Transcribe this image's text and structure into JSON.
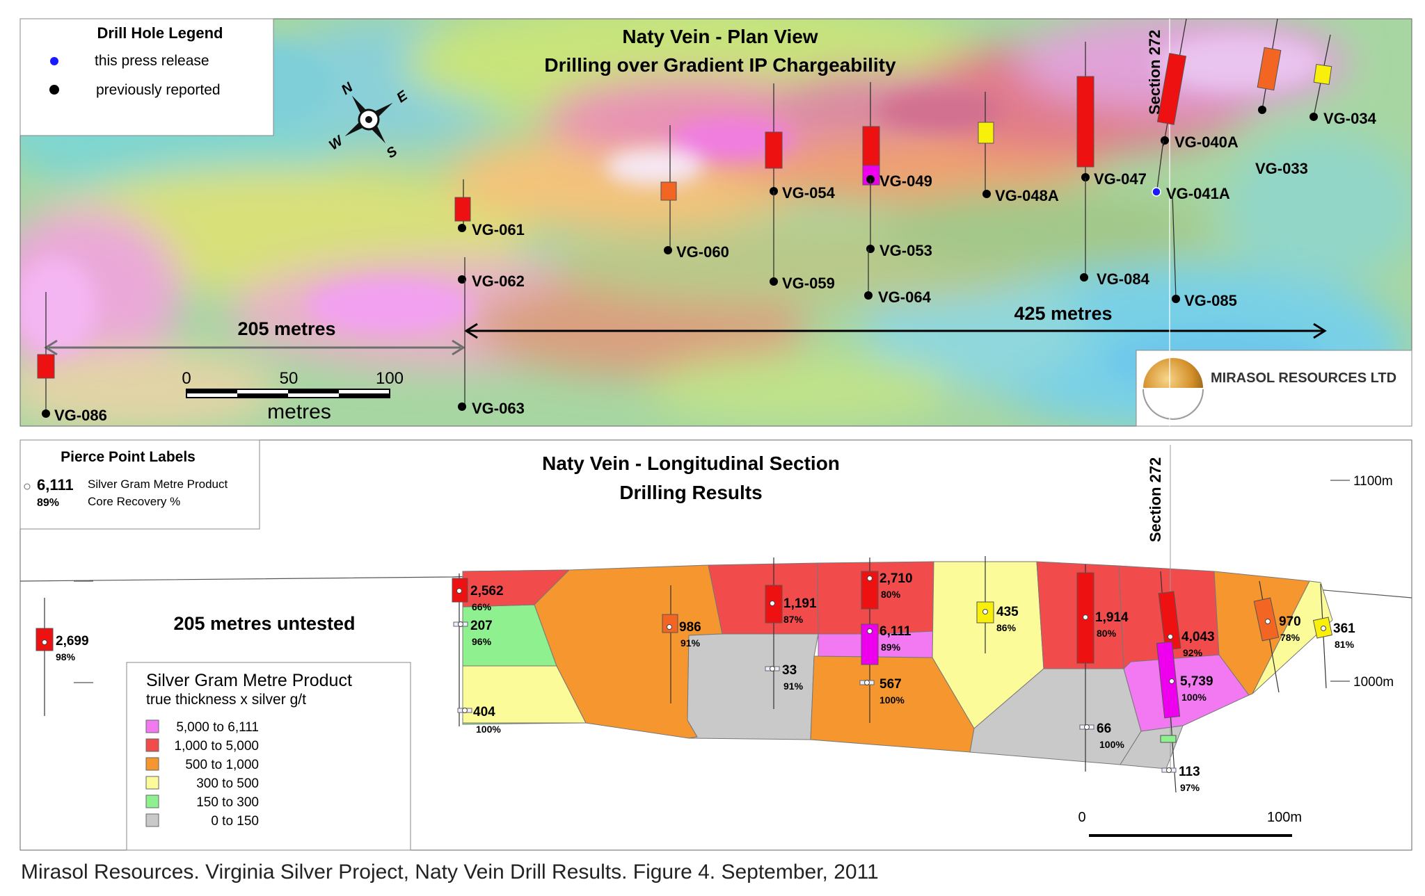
{
  "plan": {
    "title_line1": "Naty Vein - Plan View",
    "title_line2": "Drilling over Gradient IP Chargeability",
    "legend": {
      "title": "Drill Hole Legend",
      "items": [
        {
          "label": "this press release",
          "color": "#1a1aff"
        },
        {
          "label": "previously reported",
          "color": "#000000"
        }
      ]
    },
    "compass": {
      "n": "N",
      "e": "E",
      "s": "S",
      "w": "W"
    },
    "scale": {
      "ticks": [
        "0",
        "50",
        "100"
      ],
      "unit": "metres"
    },
    "dist_205": "205 metres",
    "dist_425": "425 metres",
    "section_label": "Section 272",
    "logo_text": "MIRASOL RESOURCES LTD",
    "holes": [
      {
        "id": "VG-086",
        "type": "previous"
      },
      {
        "id": "VG-061",
        "type": "previous"
      },
      {
        "id": "VG-062",
        "type": "previous"
      },
      {
        "id": "VG-063",
        "type": "previous"
      },
      {
        "id": "VG-060",
        "type": "previous"
      },
      {
        "id": "VG-054",
        "type": "previous"
      },
      {
        "id": "VG-059",
        "type": "previous"
      },
      {
        "id": "VG-049",
        "type": "previous"
      },
      {
        "id": "VG-053",
        "type": "previous"
      },
      {
        "id": "VG-064",
        "type": "previous"
      },
      {
        "id": "VG-048A",
        "type": "previous"
      },
      {
        "id": "VG-047",
        "type": "previous"
      },
      {
        "id": "VG-084",
        "type": "previous"
      },
      {
        "id": "VG-040A",
        "type": "previous"
      },
      {
        "id": "VG-041A",
        "type": "this release"
      },
      {
        "id": "VG-085",
        "type": "previous"
      },
      {
        "id": "VG-033",
        "type": "previous"
      },
      {
        "id": "VG-034",
        "type": "previous"
      }
    ]
  },
  "section": {
    "title_line1": "Naty Vein - Longitudinal Section",
    "title_line2": "Drilling Results",
    "pierce_legend": {
      "title": "Pierce Point Labels",
      "example_value": "6,111",
      "example_value_desc": "Silver Gram Metre Product",
      "example_pct": "89%",
      "example_pct_desc": "Core Recovery %"
    },
    "untested": "205 metres untested",
    "section_label": "Section 272",
    "elev_1100": "1100m",
    "elev_1000": "1000m",
    "scale": {
      "left": "0",
      "right": "100m"
    },
    "gmp_legend": {
      "title": "Silver Gram Metre Product",
      "subtitle": "true thickness x silver g/t",
      "classes": [
        {
          "label": "5,000 to 6,111",
          "color": "#f279f2"
        },
        {
          "label": "1,000 to 5,000",
          "color": "#f24b4b"
        },
        {
          "label": "500 to 1,000",
          "color": "#f5962f"
        },
        {
          "label": "300 to    500",
          "color": "#fbfb9a"
        },
        {
          "label": "150 to    300",
          "color": "#8ef08e"
        },
        {
          "label": "0 to    150",
          "color": "#c9c9c9"
        }
      ]
    },
    "pierce_points": [
      {
        "value": "2,699",
        "recovery": "98%"
      },
      {
        "value": "2,562",
        "recovery": "66%"
      },
      {
        "value": "207",
        "recovery": "96%"
      },
      {
        "value": "404",
        "recovery": "100%"
      },
      {
        "value": "986",
        "recovery": "91%"
      },
      {
        "value": "1,191",
        "recovery": "87%"
      },
      {
        "value": "33",
        "recovery": "91%"
      },
      {
        "value": "2,710",
        "recovery": "80%"
      },
      {
        "value": "6,111",
        "recovery": "89%"
      },
      {
        "value": "567",
        "recovery": "100%"
      },
      {
        "value": "435",
        "recovery": "86%"
      },
      {
        "value": "1,914",
        "recovery": "80%"
      },
      {
        "value": "66",
        "recovery": "100%"
      },
      {
        "value": "4,043",
        "recovery": "92%"
      },
      {
        "value": "5,739",
        "recovery": "100%"
      },
      {
        "value": "113",
        "recovery": "97%"
      },
      {
        "value": "970",
        "recovery": "78%"
      },
      {
        "value": "361",
        "recovery": "81%"
      }
    ]
  },
  "caption": "Mirasol Resources. Virginia Silver Project, Naty Vein Drill Results. Figure 4. September, 2011"
}
